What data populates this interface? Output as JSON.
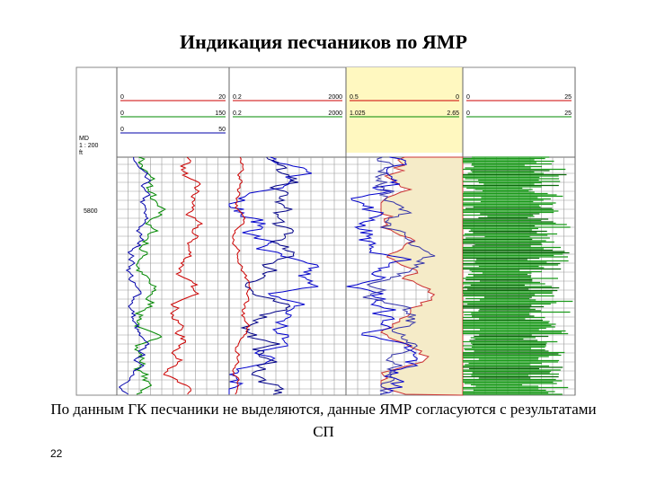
{
  "title": "Индикация песчаников по ЯМР",
  "caption": "По данным ГК песчаники не выделяются, данные ЯМР согласуются с результатами СП",
  "page_number": "22",
  "log": {
    "depth_header": "MD",
    "scale": "1 : 200",
    "unit": "ft",
    "depth_mark": "5800",
    "tracks": [
      {
        "scales": [
          [
            "0",
            "20"
          ],
          [
            "0",
            "150"
          ],
          [
            "0",
            "50"
          ]
        ]
      },
      {
        "scales": [
          [
            "0.2",
            "2000"
          ],
          [
            "0.2",
            "2000"
          ]
        ]
      },
      {
        "scales": [
          [
            "0.5",
            "0"
          ],
          [
            "1.025",
            "2.65"
          ]
        ]
      },
      {
        "scales": [
          [
            "0",
            "25"
          ],
          [
            "0",
            "25"
          ]
        ]
      }
    ]
  }
}
